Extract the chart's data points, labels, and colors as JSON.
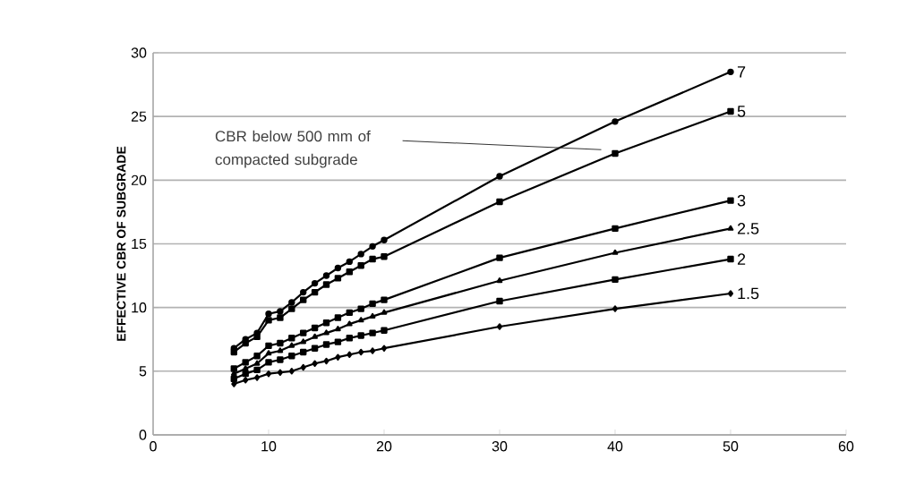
{
  "chart_data": {
    "type": "line",
    "ylabel": "EFFECTIVE  CBR OF SUBGRADE",
    "x": [
      7,
      8,
      9,
      10,
      11,
      12,
      13,
      14,
      15,
      16,
      17,
      18,
      19,
      20,
      30,
      40,
      50
    ],
    "series": [
      {
        "name": "7",
        "color": "#000000",
        "marker": "circle",
        "values": [
          6.8,
          7.5,
          8.0,
          9.5,
          9.7,
          10.4,
          11.2,
          11.9,
          12.5,
          13.1,
          13.6,
          14.2,
          14.8,
          15.3,
          20.3,
          24.6,
          28.5
        ]
      },
      {
        "name": "5",
        "color": "#000000",
        "marker": "square",
        "values": [
          6.5,
          7.2,
          7.7,
          9.0,
          9.2,
          9.9,
          10.6,
          11.2,
          11.8,
          12.3,
          12.8,
          13.3,
          13.8,
          14.0,
          18.3,
          22.1,
          25.4
        ]
      },
      {
        "name": "3",
        "color": "#000000",
        "marker": "square",
        "values": [
          5.2,
          5.7,
          6.2,
          7.0,
          7.2,
          7.6,
          8.0,
          8.4,
          8.8,
          9.2,
          9.6,
          9.9,
          10.3,
          10.6,
          13.9,
          16.2,
          18.4
        ]
      },
      {
        "name": "2.5",
        "color": "#000000",
        "marker": "triangle",
        "values": [
          4.8,
          5.2,
          5.6,
          6.4,
          6.6,
          7.0,
          7.3,
          7.7,
          8.0,
          8.3,
          8.7,
          9.0,
          9.3,
          9.6,
          12.1,
          14.3,
          16.2
        ]
      },
      {
        "name": "2",
        "color": "#000000",
        "marker": "square",
        "values": [
          4.4,
          4.8,
          5.1,
          5.7,
          5.9,
          6.2,
          6.5,
          6.8,
          7.1,
          7.3,
          7.6,
          7.8,
          8.0,
          8.2,
          10.5,
          12.2,
          13.8
        ]
      },
      {
        "name": "1.5",
        "color": "#000000",
        "marker": "diamond",
        "values": [
          4.0,
          4.3,
          4.5,
          4.8,
          4.9,
          5.0,
          5.3,
          5.6,
          5.8,
          6.1,
          6.3,
          6.5,
          6.6,
          6.8,
          8.5,
          9.9,
          11.1
        ]
      }
    ],
    "annotations": [
      "CBR below 500 mm of compacted subgrade"
    ],
    "xlim": [
      0,
      60
    ],
    "xticks": [
      0,
      10,
      20,
      30,
      40,
      50,
      60
    ],
    "ylim": [
      0,
      30
    ],
    "yticks": [
      0,
      5,
      10,
      15,
      20,
      25,
      30
    ],
    "grid": "y",
    "line_style": "solid"
  }
}
